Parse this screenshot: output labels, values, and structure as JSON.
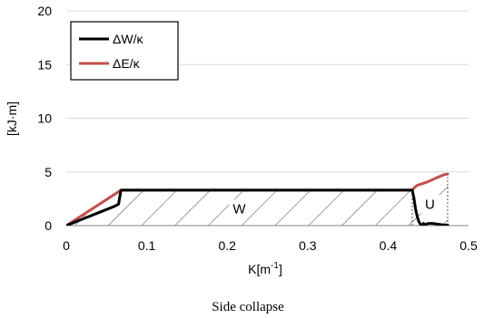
{
  "caption": "Side collapse",
  "chart_data": {
    "type": "line",
    "title": "",
    "xlabel": "K[m",
    "xlabel_sup": "-1",
    "xlabel_end": "]",
    "ylabel": "[kJ·m]",
    "xlim": [
      0,
      0.5
    ],
    "ylim": [
      0,
      20
    ],
    "x_ticks": [
      0,
      0.1,
      0.2,
      0.3,
      0.4,
      0.5
    ],
    "x_tick_labels": [
      "0",
      "0.1",
      "0.2",
      "0.3",
      "0.4",
      "0.5"
    ],
    "y_ticks": [
      0,
      5,
      10,
      15,
      20
    ],
    "y_tick_labels": [
      "0",
      "5",
      "10",
      "15",
      "20"
    ],
    "grid": "horizontal",
    "legend_position": "top-left",
    "series": [
      {
        "name": "ΔW/κ",
        "color": "#000000",
        "x": [
          0,
          0.02,
          0.04,
          0.06,
          0.065,
          0.068,
          0.43,
          0.432,
          0.434,
          0.436,
          0.438,
          0.44,
          0.442,
          0.444,
          0.446,
          0.448,
          0.45,
          0.455,
          0.46,
          0.465,
          0.47,
          0.474
        ],
        "y": [
          0,
          0.6,
          1.2,
          1.8,
          2.0,
          3.3,
          3.3,
          2.6,
          1.6,
          0.9,
          0.4,
          0.15,
          0.05,
          0.2,
          0.05,
          0.15,
          0.2,
          0.2,
          0.15,
          0.1,
          0.05,
          0.05
        ]
      },
      {
        "name": "ΔE/κ",
        "color": "#c0504d",
        "x": [
          0,
          0.068,
          0.43,
          0.433,
          0.436,
          0.44,
          0.45,
          0.46,
          0.47,
          0.474
        ],
        "y": [
          0,
          3.3,
          3.3,
          3.55,
          3.75,
          3.85,
          4.1,
          4.45,
          4.75,
          4.8
        ]
      }
    ],
    "regions": [
      {
        "label": "W",
        "x_range": [
          0,
          0.43
        ]
      },
      {
        "label": "U",
        "x_range": [
          0.43,
          0.474
        ]
      }
    ],
    "annotations": [
      "W",
      "U"
    ]
  }
}
